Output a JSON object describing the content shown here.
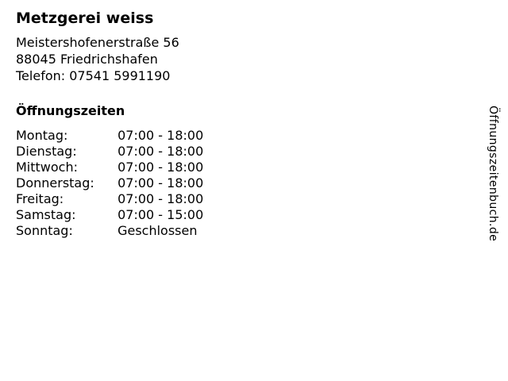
{
  "business": {
    "name": "Metzgerei weiss",
    "address_line1": "Meistershofenerstraße 56",
    "address_line2": "88045 Friedrichshafen",
    "phone_line": "Telefon: 07541 5991190"
  },
  "hours": {
    "heading": "Öffnungszeiten",
    "rows": [
      {
        "day": "Montag:",
        "time": "07:00 - 18:00"
      },
      {
        "day": "Dienstag:",
        "time": "07:00 - 18:00"
      },
      {
        "day": "Mittwoch:",
        "time": "07:00 - 18:00"
      },
      {
        "day": "Donnerstag:",
        "time": "07:00 - 18:00"
      },
      {
        "day": "Freitag:",
        "time": "07:00 - 18:00"
      },
      {
        "day": "Samstag:",
        "time": "07:00 - 15:00"
      },
      {
        "day": "Sonntag:",
        "time": "Geschlossen"
      }
    ]
  },
  "watermark": {
    "label": "Öffnungszeitenbuch.de"
  },
  "colors": {
    "text": "#000000",
    "background": "#ffffff"
  }
}
